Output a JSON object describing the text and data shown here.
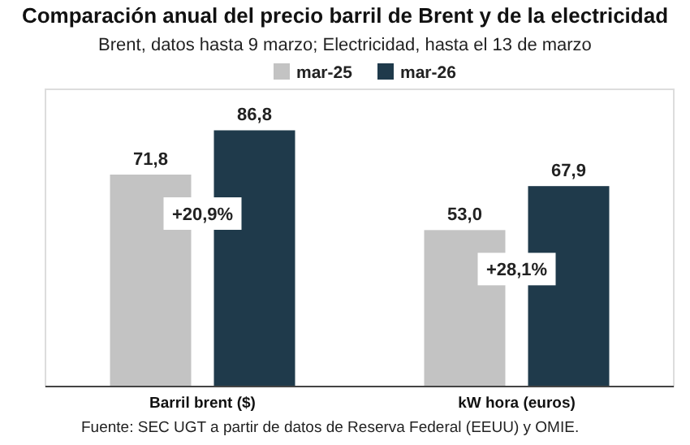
{
  "chart_data": {
    "type": "bar",
    "title": "Comparación anual del precio barril de Brent y de la electricidad",
    "subtitle": "Brent, datos hasta 9 marzo; Electricidad, hasta el 13 de marzo",
    "categories": [
      "Barril brent ($)",
      "kW hora (euros)"
    ],
    "series": [
      {
        "name": "mar-25",
        "color": "#c3c3c3",
        "values": [
          71.8,
          53.0
        ],
        "value_labels": [
          "71,8",
          "53,0"
        ]
      },
      {
        "name": "mar-26",
        "color": "#1f3a4b",
        "values": [
          86.8,
          67.9
        ],
        "value_labels": [
          "86,8",
          "67,9"
        ]
      }
    ],
    "annotations": [
      "+20,9%",
      "+28,1%",
      "Fuente: SEC UGT a partir de datos de Reserva Federal (EEUU) y OMIE."
    ],
    "legend": "top",
    "grid": false
  }
}
